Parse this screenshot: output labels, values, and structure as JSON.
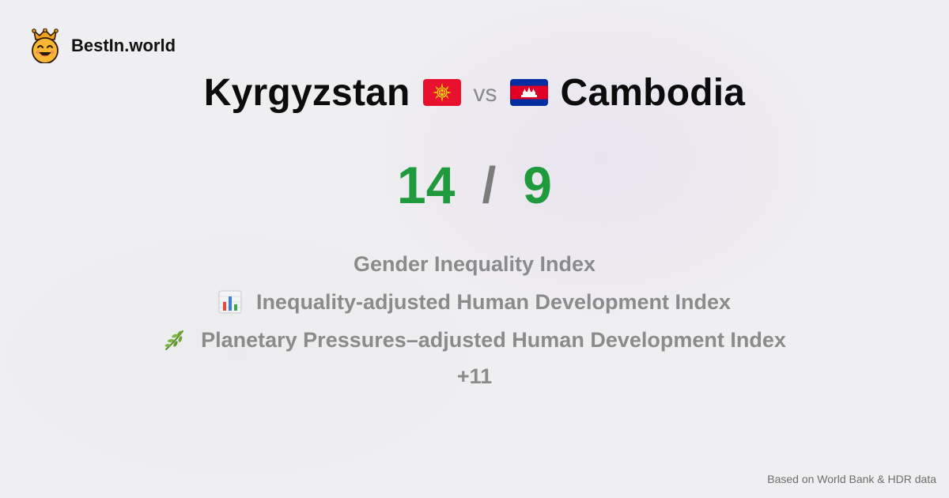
{
  "brand": {
    "name": "BestIn.world",
    "logo_icon": "crowned-smiley-icon"
  },
  "comparison": {
    "left_country": "Kyrgyzstan",
    "left_flag_icon": "kyrgyzstan-flag-icon",
    "vs_label": "vs",
    "right_country": "Cambodia",
    "right_flag_icon": "cambodia-flag-icon"
  },
  "scores": {
    "left": "14",
    "separator": "/",
    "right": "9",
    "color": "#1f9a3c"
  },
  "metrics": [
    {
      "label": "Gender Inequality Index",
      "icon": ""
    },
    {
      "label": "Inequality-adjusted Human Development Index",
      "icon": "bar-chart-icon"
    },
    {
      "label": "Planetary Pressures–adjusted Human Development Index",
      "icon": "herb-icon"
    }
  ],
  "more_label": "+11",
  "footer": {
    "source": "Based on World Bank & HDR data"
  }
}
